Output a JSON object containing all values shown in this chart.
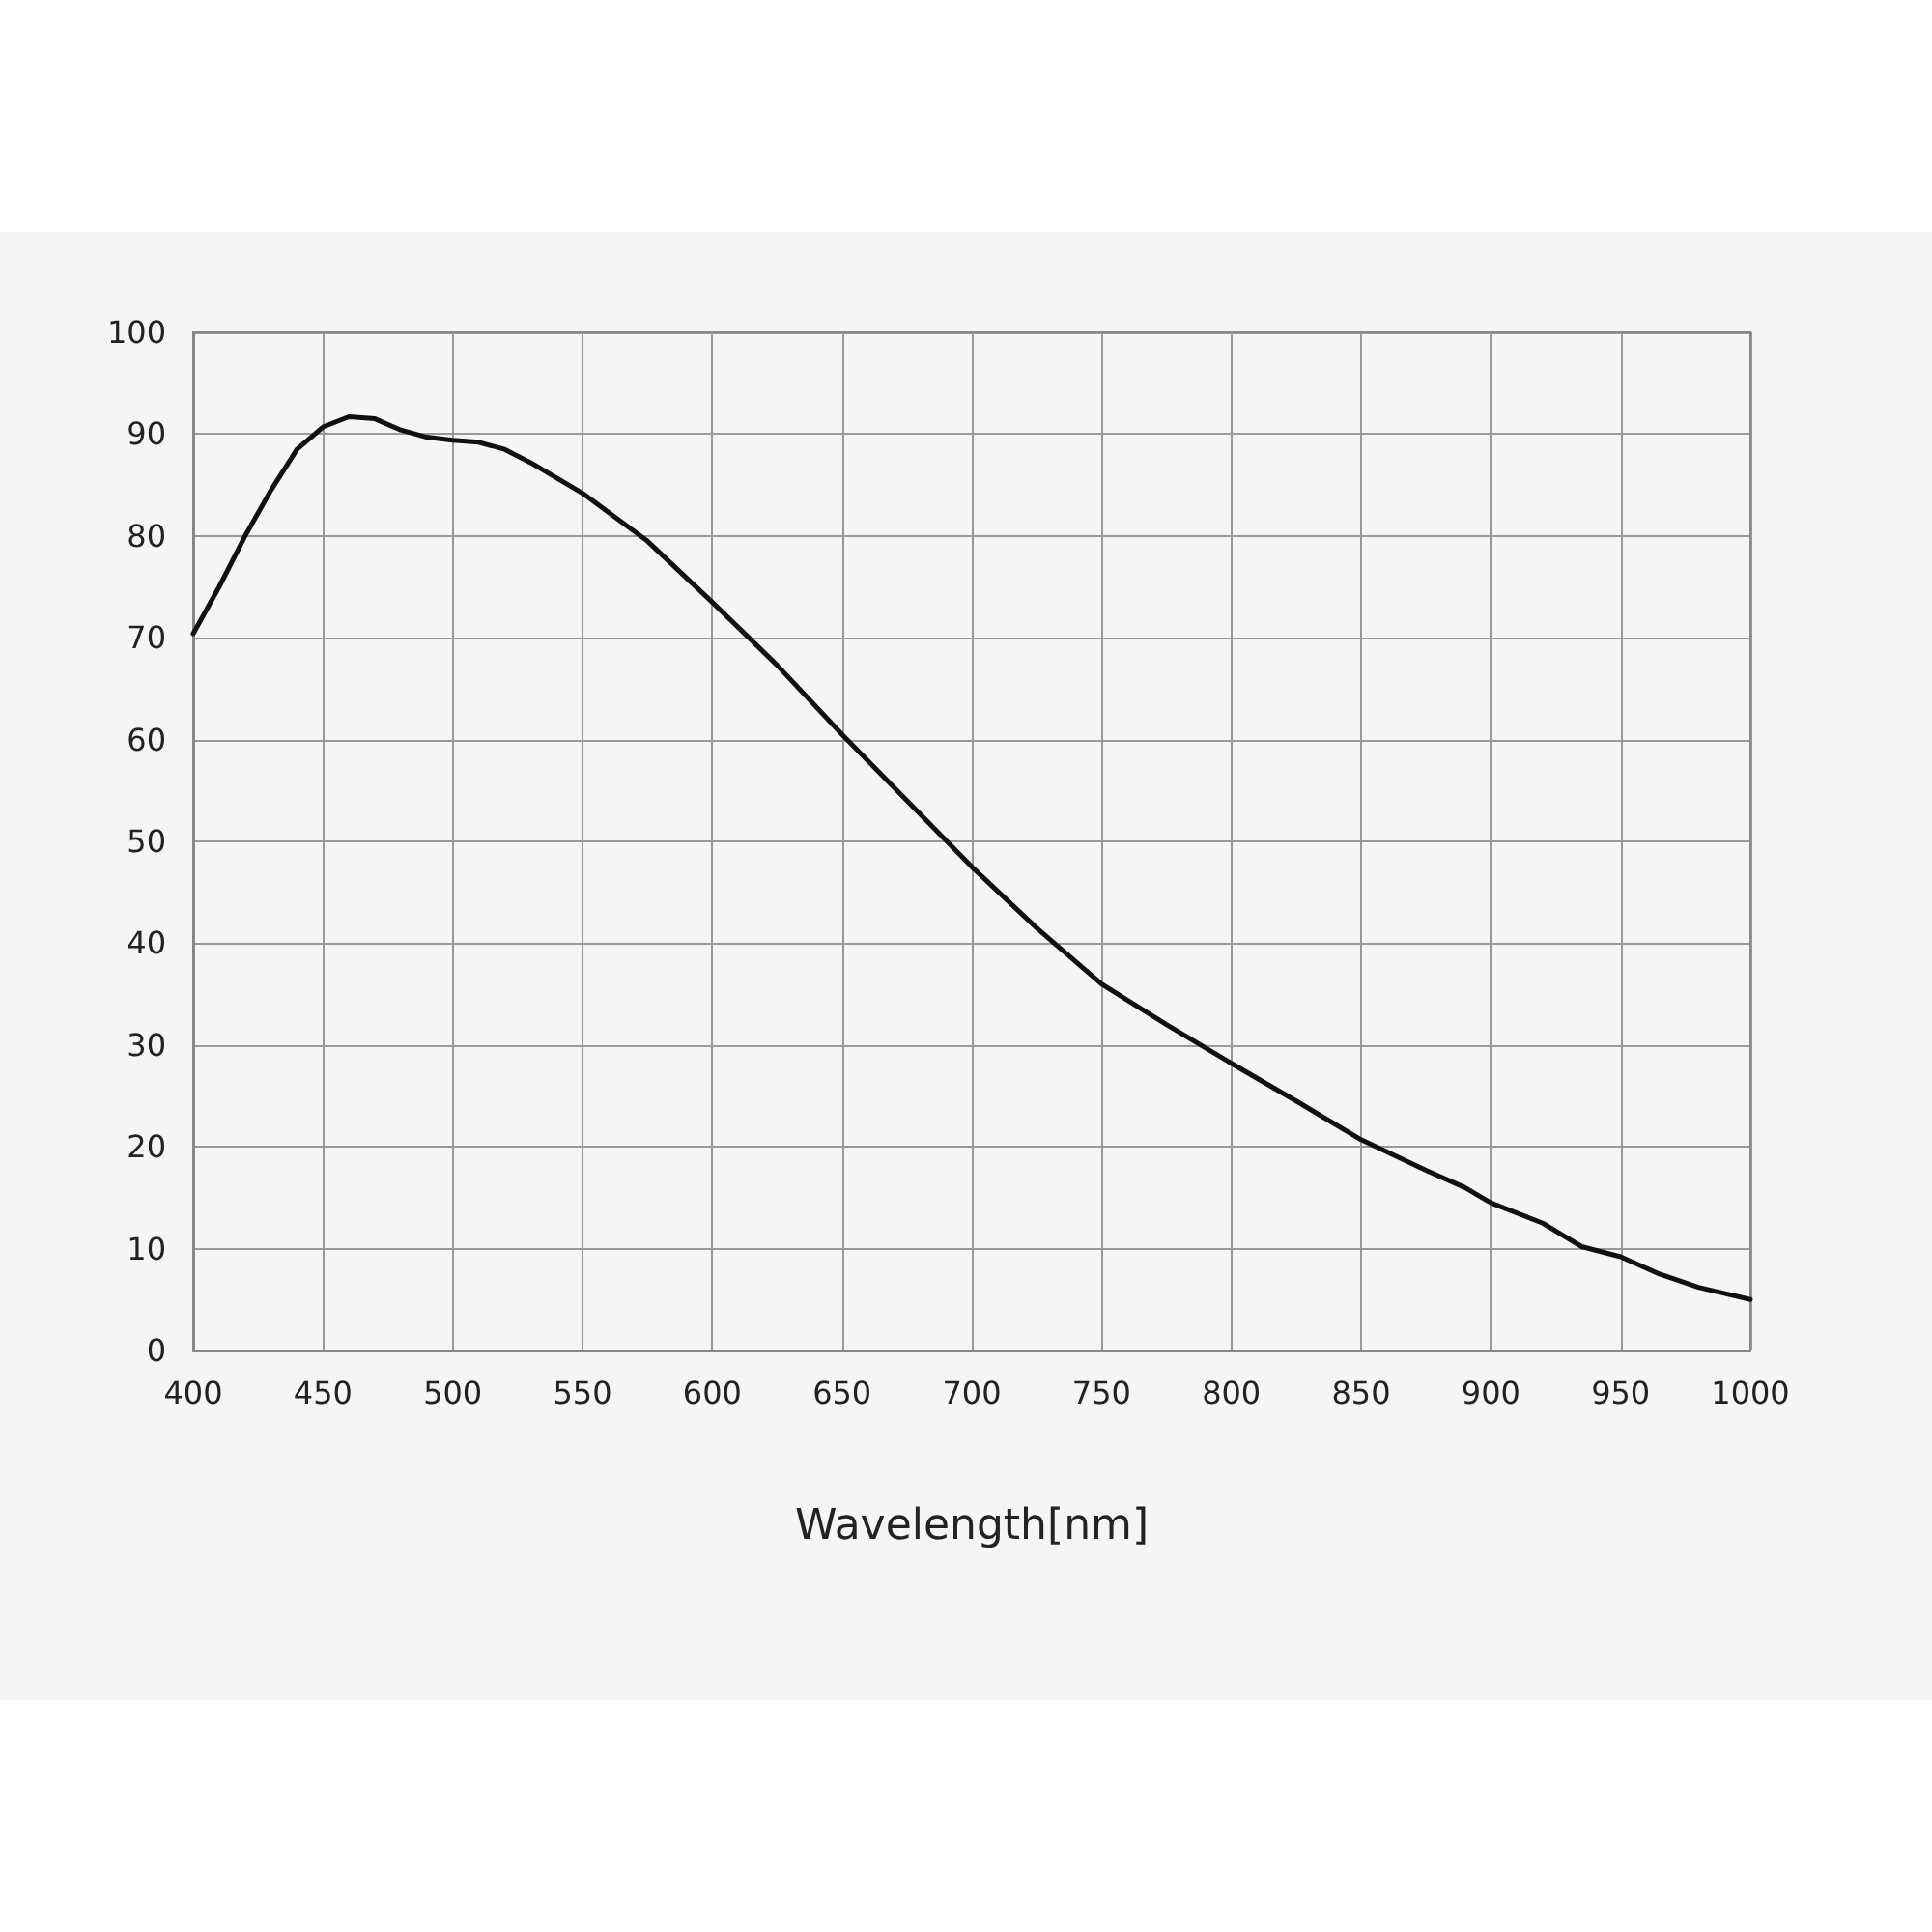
{
  "chart_data": {
    "type": "line",
    "xlabel": "Wavelength[nm]",
    "x": [
      400,
      410,
      420,
      430,
      440,
      450,
      460,
      470,
      480,
      490,
      500,
      510,
      520,
      530,
      550,
      575,
      600,
      625,
      650,
      675,
      700,
      725,
      750,
      775,
      800,
      825,
      850,
      875,
      890,
      900,
      920,
      935,
      950,
      965,
      980,
      1000
    ],
    "series": [
      {
        "color": "#111111",
        "values": [
          70.4,
          75,
          80,
          84.5,
          88.5,
          90.7,
          91.7,
          91.5,
          90.4,
          89.7,
          89.4,
          89.2,
          88.5,
          87.2,
          84.2,
          79.5,
          73.5,
          67.3,
          60.5,
          54,
          47.5,
          41.5,
          36,
          32,
          28.2,
          24.5,
          20.7,
          17.7,
          16,
          14.5,
          12.5,
          10.2,
          9.2,
          7.5,
          6.2,
          5
        ]
      }
    ],
    "xlim": [
      400,
      1000
    ],
    "xticks": [
      400,
      450,
      500,
      550,
      600,
      650,
      700,
      750,
      800,
      850,
      900,
      950,
      1000
    ],
    "ylim": [
      0,
      100
    ],
    "yticks": [
      0,
      10,
      20,
      30,
      40,
      50,
      60,
      70,
      80,
      90,
      100
    ],
    "grid": true,
    "marker": "none",
    "line_style": "solid"
  }
}
